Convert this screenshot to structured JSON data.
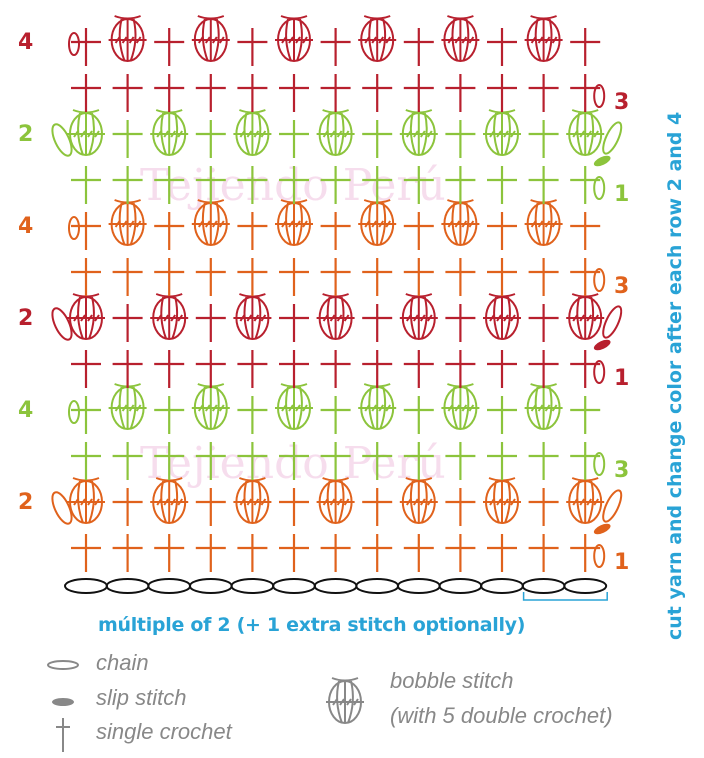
{
  "colors": {
    "red": "#b8202e",
    "green": "#8cc43c",
    "orange": "#e0621c",
    "blue": "#29a3d6",
    "chain": "#111111",
    "legend": "#888888",
    "watermark": "#f3cfe6"
  },
  "rows": [
    {
      "row": 1,
      "color": "orange"
    },
    {
      "row": 2,
      "color": "orange"
    },
    {
      "row": 3,
      "color": "green"
    },
    {
      "row": 4,
      "color": "green"
    },
    {
      "row": 1,
      "color": "red"
    },
    {
      "row": 2,
      "color": "red"
    },
    {
      "row": 3,
      "color": "orange"
    },
    {
      "row": 4,
      "color": "orange"
    },
    {
      "row": 1,
      "color": "green"
    },
    {
      "row": 2,
      "color": "green"
    },
    {
      "row": 3,
      "color": "red"
    },
    {
      "row": 4,
      "color": "red"
    }
  ],
  "row_labels": [
    "1",
    "2",
    "3",
    "4",
    "1",
    "2",
    "3",
    "4",
    "1",
    "2",
    "3",
    "4"
  ],
  "foundation_chains": 13,
  "stitch_columns": 13,
  "caption": "múltiple of 2 (+ 1 extra stitch optionally)",
  "side_note": "cut yarn and change color after each row 2 and 4",
  "watermark": "Tejiendo Perú",
  "legend": {
    "chain": "chain",
    "slip_stitch": "slip stitch",
    "single_crochet": "single crochet",
    "bobble_line1": "bobble stitch",
    "bobble_line2": "(with 5 double crochet)"
  }
}
